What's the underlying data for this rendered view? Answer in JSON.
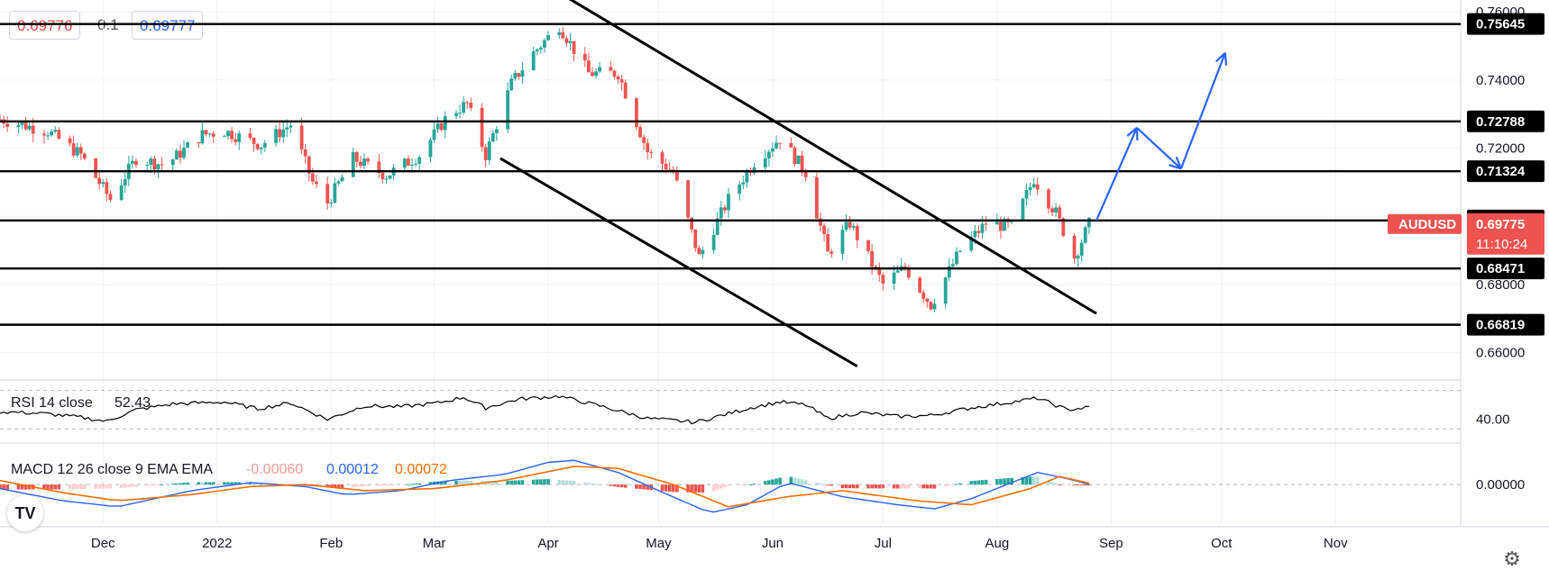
{
  "quote": {
    "bid": "0.69776",
    "spread": "0.1",
    "ask": "0.69777"
  },
  "colors": {
    "up": "#26a69a",
    "down": "#ef5350",
    "line": "#000000",
    "arrow": "#2962ff",
    "label_bg": "#000000",
    "symbol_bg": "#ef5350",
    "grid": "#eef0f3",
    "macd_line": "#2962ff",
    "signal_line": "#ff6d00",
    "hist_up_strong": "#26a69a",
    "hist_up_weak": "#b2dfdb",
    "hist_down_strong": "#ef5350",
    "hist_down_weak": "#ffcdd2"
  },
  "icons": [
    "tradingview-logo-icon",
    "gear-icon"
  ],
  "chart_data": {
    "type": "candlestick",
    "symbol": "AUDUSD",
    "last_price": "0.69775",
    "countdown": "11:10:24",
    "y_ticks": [
      "0.76000",
      "0.74000",
      "0.72000",
      "0.70000",
      "0.68000",
      "0.66000"
    ],
    "y_tick_values": [
      0.76,
      0.74,
      0.72,
      0.7,
      0.68,
      0.66
    ],
    "ylim": [
      0.6525,
      0.7635
    ],
    "x_ticks": [
      "Dec",
      "2022",
      "Feb",
      "Mar",
      "Apr",
      "May",
      "Jun",
      "Jul",
      "Aug",
      "Sep",
      "Oct",
      "Nov"
    ],
    "x_tick_dates": [
      "2021-12-01",
      "2022-01-01",
      "2022-02-01",
      "2022-03-01",
      "2022-04-01",
      "2022-05-01",
      "2022-06-01",
      "2022-07-01",
      "2022-08-01",
      "2022-09-01",
      "2022-10-01",
      "2022-11-01"
    ],
    "xlim": [
      "2021-11-03",
      "2022-12-05"
    ],
    "horizontal_levels": [
      {
        "label": "0.75645",
        "value": 0.75645
      },
      {
        "label": "0.72788",
        "value": 0.72788
      },
      {
        "label": "0.71324",
        "value": 0.71324
      },
      {
        "label": "0.69879",
        "value": 0.69879
      },
      {
        "label": "0.68471",
        "value": 0.68471
      },
      {
        "label": "0.66819",
        "value": 0.66819
      }
    ],
    "channel_lines": [
      {
        "from": {
          "date": "2022-04-05",
          "value": 0.765
        },
        "to": {
          "date": "2022-08-28",
          "value": 0.6715
        }
      },
      {
        "from": {
          "date": "2022-03-19",
          "value": 0.717
        },
        "to": {
          "date": "2022-06-24",
          "value": 0.656
        }
      }
    ],
    "projection_arrow": [
      {
        "date": "2022-08-28",
        "value": 0.6988
      },
      {
        "date": "2022-09-08",
        "value": 0.726
      },
      {
        "date": "2022-09-20",
        "value": 0.714
      },
      {
        "date": "2022-10-02",
        "value": 0.748
      }
    ],
    "path_points": [
      [
        "2021-11-03",
        0.7285
      ],
      [
        "2021-11-16",
        0.725
      ],
      [
        "2021-11-25",
        0.718
      ],
      [
        "2021-12-03",
        0.705
      ],
      [
        "2021-12-10",
        0.717
      ],
      [
        "2021-12-18",
        0.715
      ],
      [
        "2021-12-28",
        0.724
      ],
      [
        "2022-01-03",
        0.725
      ],
      [
        "2022-01-13",
        0.721
      ],
      [
        "2022-01-21",
        0.727
      ],
      [
        "2022-01-27",
        0.71
      ],
      [
        "2022-01-31",
        0.704
      ],
      [
        "2022-02-07",
        0.717
      ],
      [
        "2022-02-16",
        0.712
      ],
      [
        "2022-02-25",
        0.718
      ],
      [
        "2022-03-05",
        0.73
      ],
      [
        "2022-03-10",
        0.733
      ],
      [
        "2022-03-15",
        0.718
      ],
      [
        "2022-03-22",
        0.739
      ],
      [
        "2022-03-28",
        0.748
      ],
      [
        "2022-04-04",
        0.756
      ],
      [
        "2022-04-12",
        0.742
      ],
      [
        "2022-04-20",
        0.742
      ],
      [
        "2022-04-28",
        0.719
      ],
      [
        "2022-05-05",
        0.713
      ],
      [
        "2022-05-12",
        0.688
      ],
      [
        "2022-05-20",
        0.705
      ],
      [
        "2022-05-27",
        0.716
      ],
      [
        "2022-06-03",
        0.723
      ],
      [
        "2022-06-10",
        0.713
      ],
      [
        "2022-06-16",
        0.689
      ],
      [
        "2022-06-22",
        0.698
      ],
      [
        "2022-07-01",
        0.68
      ],
      [
        "2022-07-07",
        0.685
      ],
      [
        "2022-07-14",
        0.674
      ],
      [
        "2022-07-22",
        0.69
      ],
      [
        "2022-07-29",
        0.698
      ],
      [
        "2022-08-05",
        0.697
      ],
      [
        "2022-08-11",
        0.711
      ],
      [
        "2022-08-17",
        0.701
      ],
      [
        "2022-08-22",
        0.688
      ],
      [
        "2022-08-26",
        0.6977
      ]
    ],
    "rsi": {
      "label": "RSI 14 close",
      "value": "52.43",
      "ticks": [
        "40.00"
      ],
      "tick_values": [
        40
      ],
      "ylim": [
        22,
        78
      ],
      "bands": [
        70,
        30
      ],
      "path": [
        [
          "2021-11-03",
          48
        ],
        [
          "2021-11-15",
          46
        ],
        [
          "2021-11-25",
          42
        ],
        [
          "2021-12-02",
          38
        ],
        [
          "2021-12-10",
          50
        ],
        [
          "2021-12-20",
          56
        ],
        [
          "2022-01-03",
          58
        ],
        [
          "2022-01-12",
          51
        ],
        [
          "2022-01-21",
          57
        ],
        [
          "2022-01-31",
          40
        ],
        [
          "2022-02-10",
          54
        ],
        [
          "2022-02-20",
          53
        ],
        [
          "2022-03-02",
          57
        ],
        [
          "2022-03-09",
          63
        ],
        [
          "2022-03-15",
          52
        ],
        [
          "2022-03-24",
          61
        ],
        [
          "2022-04-04",
          64
        ],
        [
          "2022-04-15",
          54
        ],
        [
          "2022-04-28",
          41
        ],
        [
          "2022-05-11",
          37
        ],
        [
          "2022-05-26",
          52
        ],
        [
          "2022-06-03",
          58
        ],
        [
          "2022-06-10",
          55
        ],
        [
          "2022-06-16",
          41
        ],
        [
          "2022-06-25",
          47
        ],
        [
          "2022-07-05",
          43
        ],
        [
          "2022-07-14",
          44
        ],
        [
          "2022-07-25",
          52
        ],
        [
          "2022-08-05",
          58
        ],
        [
          "2022-08-12",
          62
        ],
        [
          "2022-08-20",
          50
        ],
        [
          "2022-08-26",
          52.43
        ]
      ]
    },
    "macd": {
      "label": "MACD 12 26 close 9 EMA EMA",
      "histogram": "-0.00060",
      "macd": "0.00012",
      "signal": "0.00072",
      "ticks": [
        "0.00000"
      ],
      "tick_values": [
        0
      ],
      "ylim": [
        -0.02,
        0.017
      ],
      "macd_path": [
        [
          "2021-11-03",
          -0.002
        ],
        [
          "2021-11-20",
          -0.008
        ],
        [
          "2021-12-05",
          -0.011
        ],
        [
          "2021-12-25",
          -0.003
        ],
        [
          "2022-01-10",
          0.001
        ],
        [
          "2022-01-25",
          -0.001
        ],
        [
          "2022-02-05",
          -0.005
        ],
        [
          "2022-02-20",
          -0.003
        ],
        [
          "2022-03-05",
          0.002
        ],
        [
          "2022-03-20",
          0.005
        ],
        [
          "2022-04-01",
          0.011
        ],
        [
          "2022-04-08",
          0.012
        ],
        [
          "2022-04-20",
          0.006
        ],
        [
          "2022-05-01",
          -0.003
        ],
        [
          "2022-05-15",
          -0.014
        ],
        [
          "2022-05-25",
          -0.01
        ],
        [
          "2022-06-05",
          0.001
        ],
        [
          "2022-06-20",
          -0.006
        ],
        [
          "2022-07-05",
          -0.01
        ],
        [
          "2022-07-15",
          -0.012
        ],
        [
          "2022-07-25",
          -0.007
        ],
        [
          "2022-08-05",
          0.001
        ],
        [
          "2022-08-12",
          0.006
        ],
        [
          "2022-08-20",
          0.003
        ],
        [
          "2022-08-26",
          0.00012
        ]
      ],
      "signal_path": [
        [
          "2021-11-03",
          0.002
        ],
        [
          "2021-11-20",
          -0.004
        ],
        [
          "2021-12-05",
          -0.008
        ],
        [
          "2021-12-25",
          -0.005
        ],
        [
          "2022-01-10",
          -0.001
        ],
        [
          "2022-01-25",
          0.0
        ],
        [
          "2022-02-10",
          -0.003
        ],
        [
          "2022-03-01",
          -0.002
        ],
        [
          "2022-03-20",
          0.002
        ],
        [
          "2022-04-08",
          0.009
        ],
        [
          "2022-04-20",
          0.008
        ],
        [
          "2022-05-05",
          0.0
        ],
        [
          "2022-05-20",
          -0.011
        ],
        [
          "2022-06-05",
          -0.006
        ],
        [
          "2022-06-20",
          -0.003
        ],
        [
          "2022-07-10",
          -0.008
        ],
        [
          "2022-07-25",
          -0.01
        ],
        [
          "2022-08-10",
          -0.002
        ],
        [
          "2022-08-18",
          0.004
        ],
        [
          "2022-08-26",
          0.00072
        ]
      ]
    }
  }
}
